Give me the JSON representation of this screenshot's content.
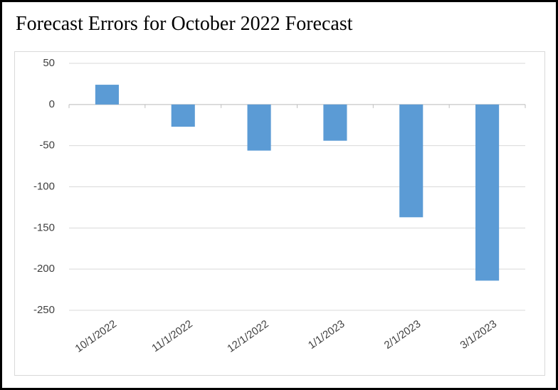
{
  "chart_data": {
    "type": "bar",
    "title": "Forecast Errors for October 2022 Forecast",
    "categories": [
      "10/1/2022",
      "11/1/2022",
      "12/1/2022",
      "1/1/2023",
      "2/1/2023",
      "3/1/2023"
    ],
    "values": [
      24,
      -27,
      -56,
      -44,
      -137,
      -214
    ],
    "color": "#5b9bd5",
    "ylim": [
      -250,
      50
    ],
    "yticks": [
      50,
      0,
      -50,
      -100,
      -150,
      -200,
      -250
    ],
    "grid": true
  }
}
